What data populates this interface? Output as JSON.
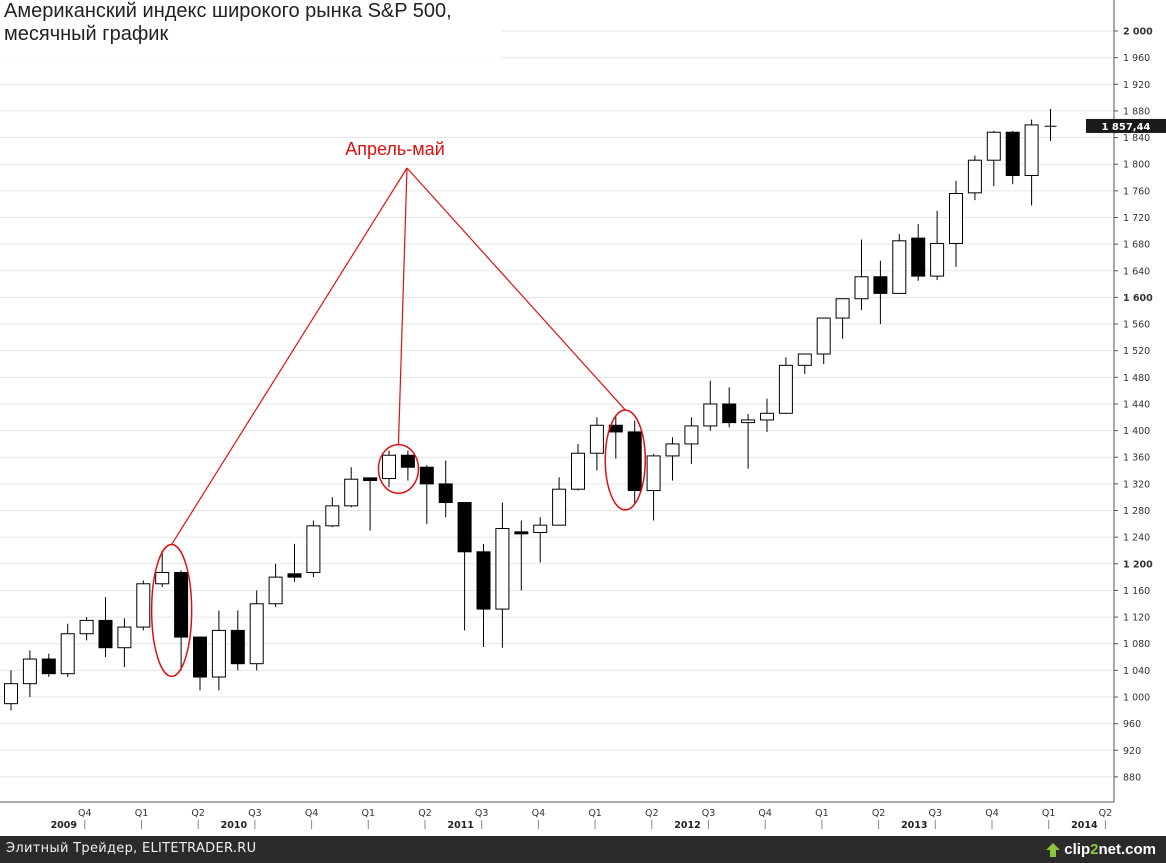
{
  "title_line1": "Американский индекс широкого рынка S&P 500,",
  "title_line2": "месячный график",
  "annotation": "Апрель-май",
  "last_price_label": "1 857,44",
  "footer": {
    "credit": "Элитный Трейдер, ELITETRADER.RU",
    "logo_prefix": "clip",
    "logo_digit": "2",
    "logo_suffix": "net.com"
  },
  "colors": {
    "annotation": "#e01010",
    "bull_fill": "#ffffff",
    "bear_fill": "#000000",
    "grid": "#e6e6e6",
    "footer_bg": "#2b2b2b",
    "logo_accent": "#8cc63f"
  },
  "chart_data": {
    "type": "candlestick",
    "title": "Американский индекс широкого рынка S&P 500, месячный график",
    "ylim": [
      850,
      2030
    ],
    "y_ticks": [
      880,
      920,
      960,
      1000,
      1040,
      1080,
      1120,
      1160,
      1200,
      1240,
      1280,
      1320,
      1360,
      1400,
      1440,
      1480,
      1520,
      1560,
      1600,
      1640,
      1680,
      1720,
      1760,
      1800,
      1840,
      1880,
      1920,
      1960,
      2000
    ],
    "y_tick_labels": [
      "880",
      "920",
      "960",
      "1 000",
      "1 040",
      "1 080",
      "1 120",
      "1 160",
      "1 200",
      "1 240",
      "1 280",
      "1 320",
      "1 360",
      "1 400",
      "1 440",
      "1 480",
      "1 520",
      "1 560",
      "1 600",
      "1 640",
      "1 680",
      "1 720",
      "1 760",
      "1 800",
      "1 840",
      "1 880",
      "1 920",
      "1 960",
      "2 000"
    ],
    "y_bold_ticks": [
      1200,
      1600,
      2000
    ],
    "quarter_labels": [
      "Q4",
      "Q1",
      "Q2",
      "Q3",
      "Q4",
      "Q1",
      "Q2",
      "Q3",
      "Q4",
      "Q1",
      "Q2",
      "Q3",
      "Q4",
      "Q1",
      "Q2",
      "Q3",
      "Q4",
      "Q1",
      "Q2"
    ],
    "year_labels": [
      {
        "label": "2009",
        "month_index": 2
      },
      {
        "label": "2010",
        "month_index": 11
      },
      {
        "label": "2011",
        "month_index": 23
      },
      {
        "label": "2012",
        "month_index": 35
      },
      {
        "label": "2013",
        "month_index": 47
      },
      {
        "label": "2014",
        "month_index": 56
      }
    ],
    "candles": [
      {
        "o": 990,
        "h": 1040,
        "l": 980,
        "c": 1020
      },
      {
        "o": 1020,
        "h": 1070,
        "l": 1000,
        "c": 1057
      },
      {
        "o": 1057,
        "h": 1065,
        "l": 1030,
        "c": 1035
      },
      {
        "o": 1035,
        "h": 1110,
        "l": 1030,
        "c": 1095
      },
      {
        "o": 1095,
        "h": 1120,
        "l": 1085,
        "c": 1115
      },
      {
        "o": 1115,
        "h": 1150,
        "l": 1060,
        "c": 1074
      },
      {
        "o": 1074,
        "h": 1118,
        "l": 1045,
        "c": 1105
      },
      {
        "o": 1105,
        "h": 1175,
        "l": 1100,
        "c": 1170
      },
      {
        "o": 1170,
        "h": 1220,
        "l": 1165,
        "c": 1187
      },
      {
        "o": 1187,
        "h": 1190,
        "l": 1040,
        "c": 1090
      },
      {
        "o": 1090,
        "h": 1090,
        "l": 1010,
        "c": 1030
      },
      {
        "o": 1030,
        "h": 1130,
        "l": 1010,
        "c": 1100
      },
      {
        "o": 1100,
        "h": 1130,
        "l": 1040,
        "c": 1050
      },
      {
        "o": 1050,
        "h": 1160,
        "l": 1040,
        "c": 1140
      },
      {
        "o": 1140,
        "h": 1200,
        "l": 1135,
        "c": 1180
      },
      {
        "o": 1185,
        "h": 1230,
        "l": 1173,
        "c": 1180
      },
      {
        "o": 1187,
        "h": 1265,
        "l": 1180,
        "c": 1257
      },
      {
        "o": 1257,
        "h": 1300,
        "l": 1255,
        "c": 1287
      },
      {
        "o": 1287,
        "h": 1345,
        "l": 1285,
        "c": 1327
      },
      {
        "o": 1329,
        "h": 1330,
        "l": 1250,
        "c": 1325
      },
      {
        "o": 1328,
        "h": 1370,
        "l": 1315,
        "c": 1363
      },
      {
        "o": 1363,
        "h": 1370,
        "l": 1325,
        "c": 1345
      },
      {
        "o": 1345,
        "h": 1348,
        "l": 1260,
        "c": 1320
      },
      {
        "o": 1320,
        "h": 1355,
        "l": 1270,
        "c": 1292
      },
      {
        "o": 1292,
        "h": 1292,
        "l": 1100,
        "c": 1218
      },
      {
        "o": 1218,
        "h": 1230,
        "l": 1075,
        "c": 1132
      },
      {
        "o": 1132,
        "h": 1292,
        "l": 1074,
        "c": 1253
      },
      {
        "o": 1248,
        "h": 1265,
        "l": 1160,
        "c": 1247
      },
      {
        "o": 1247,
        "h": 1270,
        "l": 1202,
        "c": 1258
      },
      {
        "o": 1258,
        "h": 1330,
        "l": 1258,
        "c": 1312
      },
      {
        "o": 1312,
        "h": 1380,
        "l": 1310,
        "c": 1366
      },
      {
        "o": 1366,
        "h": 1420,
        "l": 1340,
        "c": 1408
      },
      {
        "o": 1408,
        "h": 1422,
        "l": 1358,
        "c": 1398
      },
      {
        "o": 1398,
        "h": 1415,
        "l": 1290,
        "c": 1310
      },
      {
        "o": 1310,
        "h": 1365,
        "l": 1265,
        "c": 1362
      },
      {
        "o": 1362,
        "h": 1390,
        "l": 1325,
        "c": 1380
      },
      {
        "o": 1380,
        "h": 1420,
        "l": 1350,
        "c": 1407
      },
      {
        "o": 1407,
        "h": 1475,
        "l": 1400,
        "c": 1440
      },
      {
        "o": 1440,
        "h": 1465,
        "l": 1405,
        "c": 1412
      },
      {
        "o": 1412,
        "h": 1425,
        "l": 1343,
        "c": 1416
      },
      {
        "o": 1416,
        "h": 1448,
        "l": 1398,
        "c": 1426
      },
      {
        "o": 1426,
        "h": 1510,
        "l": 1425,
        "c": 1498
      },
      {
        "o": 1498,
        "h": 1515,
        "l": 1485,
        "c": 1515
      },
      {
        "o": 1515,
        "h": 1570,
        "l": 1500,
        "c": 1569
      },
      {
        "o": 1569,
        "h": 1598,
        "l": 1538,
        "c": 1598
      },
      {
        "o": 1598,
        "h": 1687,
        "l": 1581,
        "c": 1631
      },
      {
        "o": 1631,
        "h": 1655,
        "l": 1560,
        "c": 1606
      },
      {
        "o": 1606,
        "h": 1695,
        "l": 1605,
        "c": 1685
      },
      {
        "o": 1689,
        "h": 1710,
        "l": 1625,
        "c": 1632
      },
      {
        "o": 1632,
        "h": 1730,
        "l": 1626,
        "c": 1681
      },
      {
        "o": 1681,
        "h": 1775,
        "l": 1646,
        "c": 1756
      },
      {
        "o": 1757,
        "h": 1813,
        "l": 1746,
        "c": 1806
      },
      {
        "o": 1806,
        "h": 1850,
        "l": 1767,
        "c": 1848
      },
      {
        "o": 1848,
        "h": 1850,
        "l": 1770,
        "c": 1783
      },
      {
        "o": 1783,
        "h": 1867,
        "l": 1738,
        "c": 1859
      },
      {
        "o": 1858,
        "h": 1883,
        "l": 1835,
        "c": 1857
      }
    ],
    "highlight_groups": [
      {
        "months": [
          8,
          9
        ]
      },
      {
        "months": [
          20,
          21
        ]
      },
      {
        "months": [
          32,
          33
        ]
      }
    ],
    "last_price": 1857.44,
    "legend": "none",
    "grid": true
  }
}
